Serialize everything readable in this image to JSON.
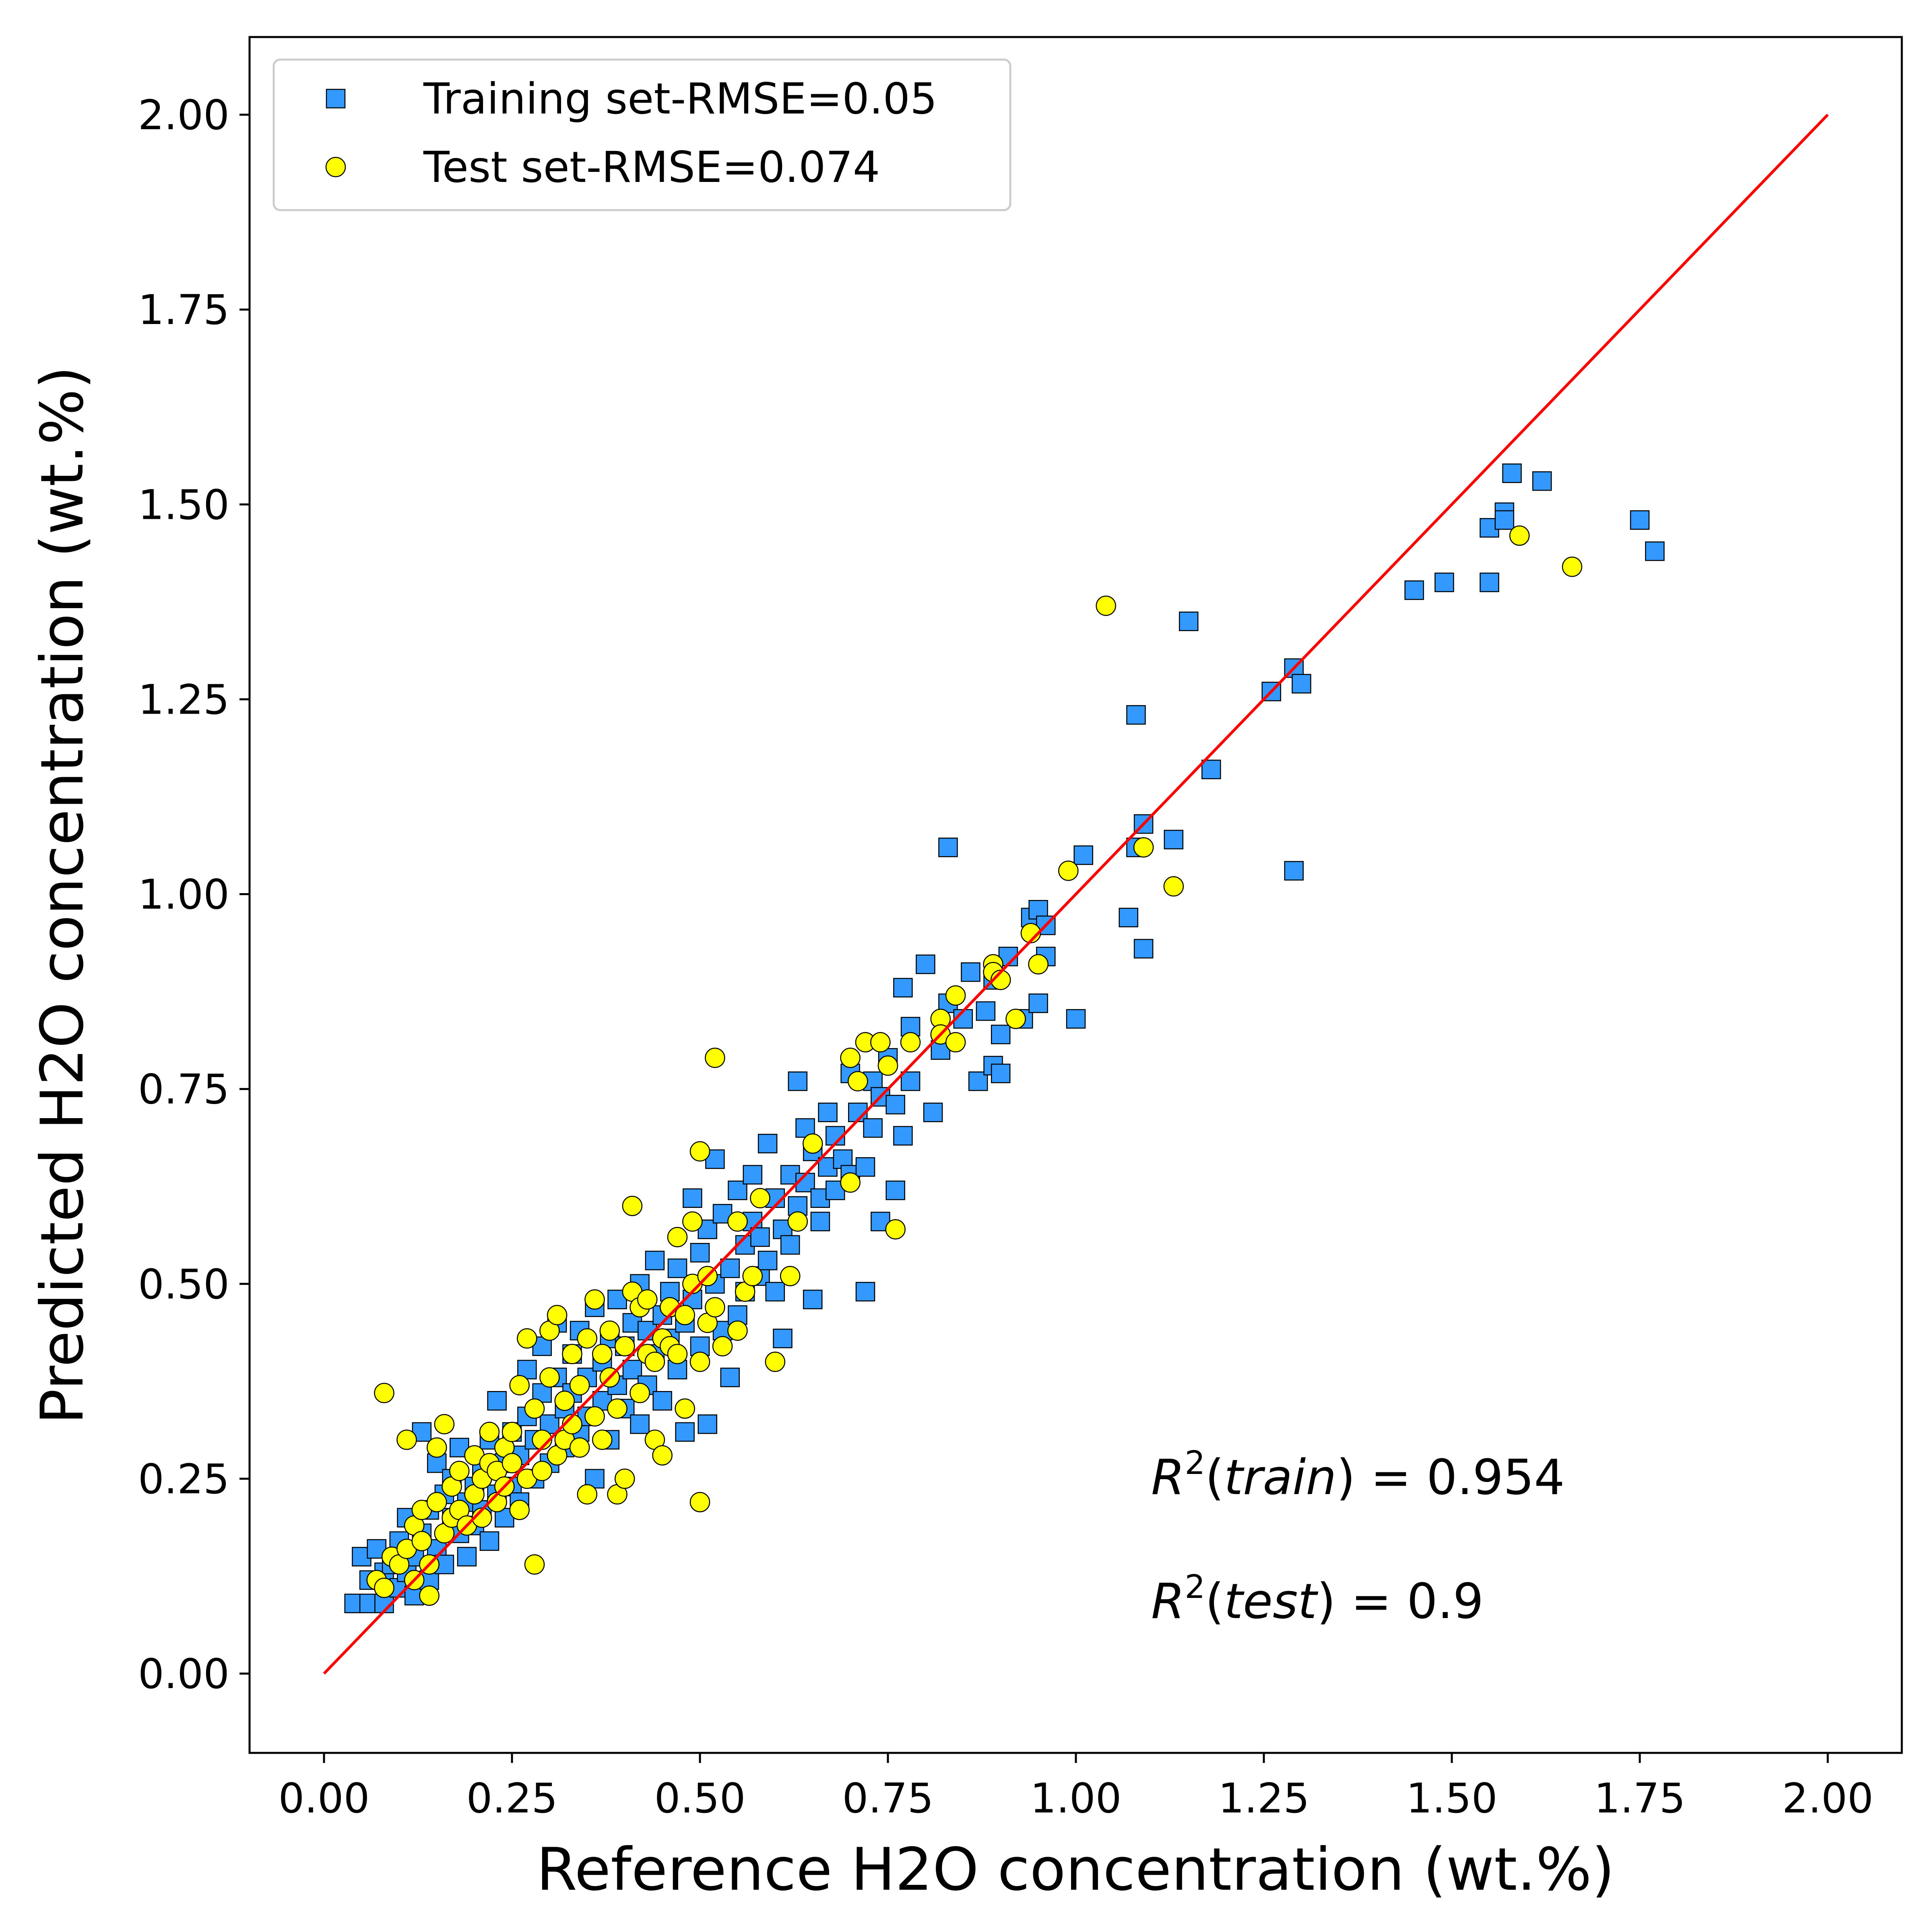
{
  "chart_data": {
    "type": "scatter",
    "xlabel": "Reference H2O concentration (wt.%)",
    "ylabel": "Predicted H2O concentration (wt.%)",
    "xlim": [
      -0.1,
      2.1
    ],
    "ylim": [
      -0.1,
      2.1
    ],
    "xticks": [
      "0.00",
      "0.25",
      "0.50",
      "0.75",
      "1.00",
      "1.25",
      "1.50",
      "1.75",
      "2.00"
    ],
    "yticks": [
      "0.00",
      "0.25",
      "0.50",
      "0.75",
      "1.00",
      "1.25",
      "1.50",
      "1.75",
      "2.00"
    ],
    "grid": false,
    "legend_position": "upper-left",
    "annotations": [
      {
        "var": "R",
        "sup": "2",
        "arg": "train",
        "value": "0.954"
      },
      {
        "var": "R",
        "sup": "2",
        "arg": "test",
        "value": "0.9"
      }
    ],
    "reference_line": {
      "x": [
        0,
        2
      ],
      "y": [
        0,
        2
      ],
      "color": "#ff0000"
    },
    "series": [
      {
        "name": "Training set-RMSE=0.05",
        "marker": "square",
        "color": "#3399ff",
        "points": [
          [
            0.04,
            0.09
          ],
          [
            0.05,
            0.15
          ],
          [
            0.06,
            0.12
          ],
          [
            0.06,
            0.09
          ],
          [
            0.07,
            0.16
          ],
          [
            0.08,
            0.13
          ],
          [
            0.08,
            0.09
          ],
          [
            0.09,
            0.14
          ],
          [
            0.1,
            0.11
          ],
          [
            0.1,
            0.17
          ],
          [
            0.11,
            0.2
          ],
          [
            0.11,
            0.13
          ],
          [
            0.12,
            0.1
          ],
          [
            0.12,
            0.15
          ],
          [
            0.13,
            0.31
          ],
          [
            0.13,
            0.18
          ],
          [
            0.14,
            0.21
          ],
          [
            0.14,
            0.12
          ],
          [
            0.15,
            0.27
          ],
          [
            0.15,
            0.16
          ],
          [
            0.16,
            0.23
          ],
          [
            0.16,
            0.14
          ],
          [
            0.17,
            0.2
          ],
          [
            0.17,
            0.25
          ],
          [
            0.18,
            0.18
          ],
          [
            0.18,
            0.29
          ],
          [
            0.19,
            0.22
          ],
          [
            0.19,
            0.15
          ],
          [
            0.2,
            0.24
          ],
          [
            0.2,
            0.19
          ],
          [
            0.21,
            0.26
          ],
          [
            0.21,
            0.21
          ],
          [
            0.22,
            0.3
          ],
          [
            0.22,
            0.17
          ],
          [
            0.23,
            0.35
          ],
          [
            0.23,
            0.23
          ],
          [
            0.24,
            0.27
          ],
          [
            0.24,
            0.2
          ],
          [
            0.25,
            0.31
          ],
          [
            0.25,
            0.24
          ],
          [
            0.26,
            0.28
          ],
          [
            0.26,
            0.22
          ],
          [
            0.27,
            0.33
          ],
          [
            0.27,
            0.39
          ],
          [
            0.28,
            0.3
          ],
          [
            0.28,
            0.25
          ],
          [
            0.29,
            0.36
          ],
          [
            0.29,
            0.42
          ],
          [
            0.3,
            0.32
          ],
          [
            0.3,
            0.27
          ],
          [
            0.31,
            0.38
          ],
          [
            0.31,
            0.45
          ],
          [
            0.32,
            0.34
          ],
          [
            0.32,
            0.29
          ],
          [
            0.33,
            0.41
          ],
          [
            0.33,
            0.36
          ],
          [
            0.34,
            0.31
          ],
          [
            0.34,
            0.44
          ],
          [
            0.35,
            0.38
          ],
          [
            0.35,
            0.33
          ],
          [
            0.36,
            0.47
          ],
          [
            0.36,
            0.25
          ],
          [
            0.37,
            0.4
          ],
          [
            0.37,
            0.35
          ],
          [
            0.38,
            0.43
          ],
          [
            0.38,
            0.3
          ],
          [
            0.39,
            0.37
          ],
          [
            0.39,
            0.48
          ],
          [
            0.4,
            0.42
          ],
          [
            0.4,
            0.34
          ],
          [
            0.41,
            0.45
          ],
          [
            0.41,
            0.39
          ],
          [
            0.42,
            0.32
          ],
          [
            0.42,
            0.5
          ],
          [
            0.43,
            0.44
          ],
          [
            0.43,
            0.37
          ],
          [
            0.44,
            0.53
          ],
          [
            0.44,
            0.41
          ],
          [
            0.45,
            0.46
          ],
          [
            0.45,
            0.35
          ],
          [
            0.46,
            0.49
          ],
          [
            0.46,
            0.43
          ],
          [
            0.47,
            0.39
          ],
          [
            0.47,
            0.52
          ],
          [
            0.48,
            0.45
          ],
          [
            0.48,
            0.31
          ],
          [
            0.49,
            0.61
          ],
          [
            0.49,
            0.48
          ],
          [
            0.5,
            0.54
          ],
          [
            0.5,
            0.42
          ],
          [
            0.51,
            0.32
          ],
          [
            0.51,
            0.57
          ],
          [
            0.52,
            0.5
          ],
          [
            0.52,
            0.66
          ],
          [
            0.53,
            0.44
          ],
          [
            0.53,
            0.59
          ],
          [
            0.54,
            0.52
          ],
          [
            0.54,
            0.38
          ],
          [
            0.55,
            0.62
          ],
          [
            0.55,
            0.46
          ],
          [
            0.56,
            0.55
          ],
          [
            0.56,
            0.49
          ],
          [
            0.57,
            0.58
          ],
          [
            0.57,
            0.64
          ],
          [
            0.58,
            0.51
          ],
          [
            0.58,
            0.56
          ],
          [
            0.59,
            0.68
          ],
          [
            0.59,
            0.53
          ],
          [
            0.6,
            0.49
          ],
          [
            0.6,
            0.61
          ],
          [
            0.61,
            0.57
          ],
          [
            0.61,
            0.43
          ],
          [
            0.62,
            0.64
          ],
          [
            0.62,
            0.55
          ],
          [
            0.63,
            0.76
          ],
          [
            0.63,
            0.6
          ],
          [
            0.64,
            0.7
          ],
          [
            0.64,
            0.63
          ],
          [
            0.65,
            0.48
          ],
          [
            0.65,
            0.67
          ],
          [
            0.66,
            0.61
          ],
          [
            0.66,
            0.58
          ],
          [
            0.67,
            0.72
          ],
          [
            0.67,
            0.65
          ],
          [
            0.68,
            0.69
          ],
          [
            0.68,
            0.62
          ],
          [
            0.69,
            0.66
          ],
          [
            0.7,
            0.77
          ],
          [
            0.7,
            0.64
          ],
          [
            0.71,
            0.72
          ],
          [
            0.72,
            0.49
          ],
          [
            0.72,
            0.65
          ],
          [
            0.73,
            0.76
          ],
          [
            0.73,
            0.7
          ],
          [
            0.74,
            0.58
          ],
          [
            0.74,
            0.74
          ],
          [
            0.75,
            0.79
          ],
          [
            0.76,
            0.62
          ],
          [
            0.76,
            0.73
          ],
          [
            0.77,
            0.88
          ],
          [
            0.77,
            0.69
          ],
          [
            0.78,
            0.83
          ],
          [
            0.78,
            0.76
          ],
          [
            0.8,
            0.91
          ],
          [
            0.81,
            0.72
          ],
          [
            0.82,
            0.8
          ],
          [
            0.83,
            1.06
          ],
          [
            0.83,
            0.86
          ],
          [
            0.85,
            0.84
          ],
          [
            0.86,
            0.9
          ],
          [
            0.87,
            0.76
          ],
          [
            0.88,
            0.85
          ],
          [
            0.89,
            0.78
          ],
          [
            0.89,
            0.89
          ],
          [
            0.9,
            0.82
          ],
          [
            0.9,
            0.77
          ],
          [
            0.91,
            0.92
          ],
          [
            0.93,
            0.84
          ],
          [
            0.94,
            0.97
          ],
          [
            0.95,
            0.98
          ],
          [
            0.95,
            0.86
          ],
          [
            0.96,
            0.96
          ],
          [
            0.96,
            0.92
          ],
          [
            1.0,
            0.84
          ],
          [
            1.01,
            1.05
          ],
          [
            1.07,
            0.97
          ],
          [
            1.08,
            1.23
          ],
          [
            1.08,
            1.06
          ],
          [
            1.09,
            1.09
          ],
          [
            1.09,
            0.93
          ],
          [
            1.13,
            1.07
          ],
          [
            1.15,
            1.35
          ],
          [
            1.18,
            1.16
          ],
          [
            1.26,
            1.26
          ],
          [
            1.29,
            1.29
          ],
          [
            1.29,
            1.03
          ],
          [
            1.3,
            1.27
          ],
          [
            1.45,
            1.39
          ],
          [
            1.49,
            1.4
          ],
          [
            1.55,
            1.47
          ],
          [
            1.55,
            1.4
          ],
          [
            1.57,
            1.49
          ],
          [
            1.57,
            1.48
          ],
          [
            1.58,
            1.54
          ],
          [
            1.62,
            1.53
          ],
          [
            1.75,
            1.48
          ],
          [
            1.77,
            1.44
          ]
        ]
      },
      {
        "name": "Test set-RMSE=0.074",
        "marker": "circle",
        "color": "#ffff00",
        "points": [
          [
            0.07,
            0.12
          ],
          [
            0.08,
            0.36
          ],
          [
            0.08,
            0.11
          ],
          [
            0.09,
            0.15
          ],
          [
            0.1,
            0.14
          ],
          [
            0.11,
            0.3
          ],
          [
            0.11,
            0.16
          ],
          [
            0.12,
            0.12
          ],
          [
            0.12,
            0.19
          ],
          [
            0.13,
            0.21
          ],
          [
            0.13,
            0.17
          ],
          [
            0.14,
            0.14
          ],
          [
            0.14,
            0.1
          ],
          [
            0.15,
            0.22
          ],
          [
            0.15,
            0.29
          ],
          [
            0.16,
            0.32
          ],
          [
            0.16,
            0.18
          ],
          [
            0.17,
            0.24
          ],
          [
            0.17,
            0.2
          ],
          [
            0.18,
            0.26
          ],
          [
            0.18,
            0.21
          ],
          [
            0.19,
            0.19
          ],
          [
            0.2,
            0.23
          ],
          [
            0.2,
            0.28
          ],
          [
            0.21,
            0.25
          ],
          [
            0.21,
            0.2
          ],
          [
            0.22,
            0.27
          ],
          [
            0.22,
            0.31
          ],
          [
            0.23,
            0.22
          ],
          [
            0.23,
            0.26
          ],
          [
            0.24,
            0.29
          ],
          [
            0.24,
            0.24
          ],
          [
            0.25,
            0.31
          ],
          [
            0.25,
            0.27
          ],
          [
            0.26,
            0.21
          ],
          [
            0.26,
            0.37
          ],
          [
            0.27,
            0.25
          ],
          [
            0.27,
            0.43
          ],
          [
            0.28,
            0.34
          ],
          [
            0.28,
            0.14
          ],
          [
            0.29,
            0.3
          ],
          [
            0.29,
            0.26
          ],
          [
            0.3,
            0.44
          ],
          [
            0.3,
            0.38
          ],
          [
            0.31,
            0.28
          ],
          [
            0.31,
            0.46
          ],
          [
            0.32,
            0.35
          ],
          [
            0.32,
            0.3
          ],
          [
            0.33,
            0.41
          ],
          [
            0.33,
            0.32
          ],
          [
            0.34,
            0.37
          ],
          [
            0.34,
            0.29
          ],
          [
            0.35,
            0.43
          ],
          [
            0.35,
            0.23
          ],
          [
            0.36,
            0.48
          ],
          [
            0.36,
            0.33
          ],
          [
            0.37,
            0.41
          ],
          [
            0.37,
            0.3
          ],
          [
            0.38,
            0.44
          ],
          [
            0.38,
            0.38
          ],
          [
            0.39,
            0.23
          ],
          [
            0.39,
            0.34
          ],
          [
            0.4,
            0.42
          ],
          [
            0.4,
            0.25
          ],
          [
            0.41,
            0.6
          ],
          [
            0.41,
            0.49
          ],
          [
            0.42,
            0.47
          ],
          [
            0.42,
            0.36
          ],
          [
            0.43,
            0.41
          ],
          [
            0.43,
            0.48
          ],
          [
            0.44,
            0.4
          ],
          [
            0.44,
            0.3
          ],
          [
            0.45,
            0.43
          ],
          [
            0.45,
            0.28
          ],
          [
            0.46,
            0.47
          ],
          [
            0.46,
            0.42
          ],
          [
            0.47,
            0.56
          ],
          [
            0.47,
            0.41
          ],
          [
            0.48,
            0.46
          ],
          [
            0.48,
            0.34
          ],
          [
            0.49,
            0.58
          ],
          [
            0.49,
            0.5
          ],
          [
            0.5,
            0.67
          ],
          [
            0.5,
            0.4
          ],
          [
            0.5,
            0.22
          ],
          [
            0.51,
            0.51
          ],
          [
            0.51,
            0.45
          ],
          [
            0.52,
            0.79
          ],
          [
            0.52,
            0.47
          ],
          [
            0.53,
            0.42
          ],
          [
            0.55,
            0.58
          ],
          [
            0.55,
            0.44
          ],
          [
            0.56,
            0.49
          ],
          [
            0.57,
            0.51
          ],
          [
            0.58,
            0.61
          ],
          [
            0.6,
            0.4
          ],
          [
            0.62,
            0.51
          ],
          [
            0.63,
            0.58
          ],
          [
            0.65,
            0.68
          ],
          [
            0.7,
            0.79
          ],
          [
            0.7,
            0.63
          ],
          [
            0.71,
            0.76
          ],
          [
            0.72,
            0.81
          ],
          [
            0.74,
            0.81
          ],
          [
            0.75,
            0.78
          ],
          [
            0.76,
            0.57
          ],
          [
            0.78,
            0.81
          ],
          [
            0.82,
            0.84
          ],
          [
            0.82,
            0.82
          ],
          [
            0.84,
            0.87
          ],
          [
            0.84,
            0.81
          ],
          [
            0.89,
            0.91
          ],
          [
            0.89,
            0.9
          ],
          [
            0.9,
            0.89
          ],
          [
            0.92,
            0.84
          ],
          [
            0.94,
            0.95
          ],
          [
            0.95,
            0.91
          ],
          [
            0.99,
            1.03
          ],
          [
            1.04,
            1.37
          ],
          [
            1.09,
            1.06
          ],
          [
            1.13,
            1.01
          ],
          [
            1.59,
            1.46
          ],
          [
            1.66,
            1.42
          ]
        ]
      }
    ]
  }
}
